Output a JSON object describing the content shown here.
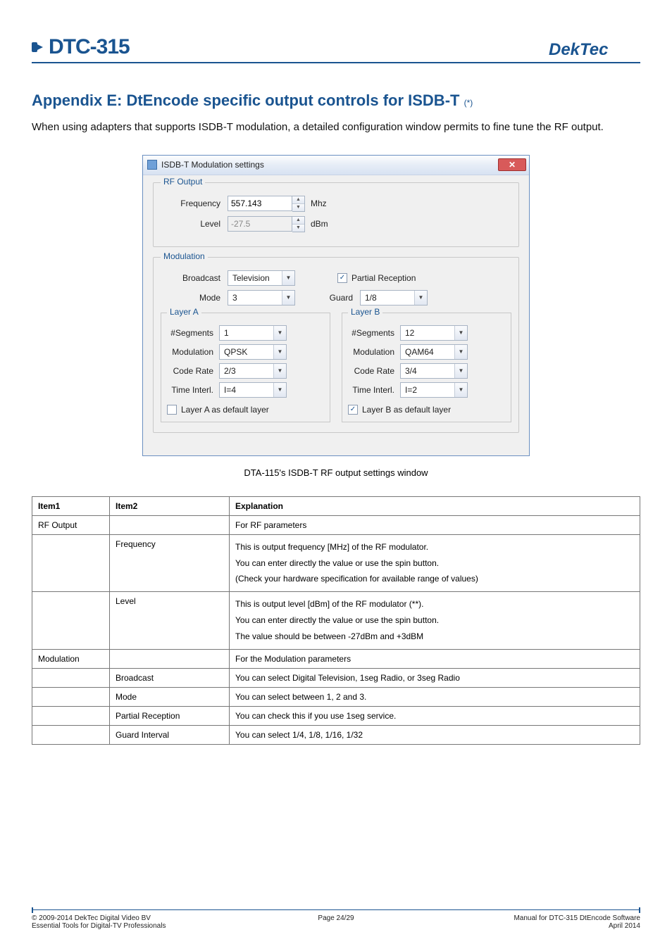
{
  "header": {
    "product": "DTC-315",
    "brand": "DekTec"
  },
  "heading": {
    "main": "Appendix E: DtEncode specific output controls for ISDB-T",
    "note": "(*)"
  },
  "intro": "When using adapters that supports ISDB-T modulation, a detailed configuration window permits to fine tune the RF output.",
  "dialog": {
    "title": "ISDB-T Modulation settings",
    "rf_output": {
      "legend": "RF Output",
      "frequency_label": "Frequency",
      "frequency_value": "557.143",
      "frequency_unit": "Mhz",
      "level_label": "Level",
      "level_value": "-27.5",
      "level_unit": "dBm"
    },
    "modulation": {
      "legend": "Modulation",
      "broadcast_label": "Broadcast",
      "broadcast_value": "Television",
      "partial_reception_label": "Partial Reception",
      "partial_reception_checked": true,
      "mode_label": "Mode",
      "mode_value": "3",
      "guard_label": "Guard",
      "guard_value": "1/8",
      "layerA": {
        "legend": "Layer A",
        "segments_label": "#Segments",
        "segments": "1",
        "modulation_label": "Modulation",
        "modulation": "QPSK",
        "coderate_label": "Code Rate",
        "coderate": "2/3",
        "timeinterl_label": "Time Interl.",
        "timeinterl": "I=4",
        "default_label": "Layer A as default layer",
        "default_checked": false
      },
      "layerB": {
        "legend": "Layer B",
        "segments_label": "#Segments",
        "segments": "12",
        "modulation_label": "Modulation",
        "modulation": "QAM64",
        "coderate_label": "Code Rate",
        "coderate": "3/4",
        "timeinterl_label": "Time Interl.",
        "timeinterl": "I=2",
        "default_label": "Layer B as default layer",
        "default_checked": true
      }
    }
  },
  "caption": "DTA-115's ISDB-T RF output settings window",
  "table": {
    "headers": {
      "c1": "Item1",
      "c2": "Item2",
      "c3": "Explanation"
    },
    "rows": [
      {
        "c1": "RF Output",
        "c2": "",
        "c3": "For RF parameters"
      },
      {
        "c1": "",
        "c2": "Frequency",
        "c3": "This is output frequency [MHz] of the RF modulator.\nYou can enter directly the value or use the spin button.\n(Check your hardware specification for available range of values)"
      },
      {
        "c1": "",
        "c2": "Level",
        "c3": "This is output level [dBm] of the RF modulator (**).\nYou can enter directly the value or use the spin button.\nThe value should be between -27dBm and +3dBM"
      },
      {
        "c1": "Modulation",
        "c2": "",
        "c3": "For the Modulation parameters"
      },
      {
        "c1": "",
        "c2": "Broadcast",
        "c3": "You can select Digital Television, 1seg Radio, or 3seg Radio"
      },
      {
        "c1": "",
        "c2": "Mode",
        "c3": "You can select between 1, 2 and 3."
      },
      {
        "c1": "",
        "c2": "Partial Reception",
        "c3": "You can check this if you use 1seg service."
      },
      {
        "c1": "",
        "c2": "Guard Interval",
        "c3": "You can select  1/4, 1/8, 1/16, 1/32"
      }
    ]
  },
  "footer": {
    "left1": "© 2009-2014 DekTec Digital Video BV",
    "left2": "Essential Tools for Digital-TV Professionals",
    "center": "Page 24/29",
    "right1": "Manual for DTC-315 DtEncode Software",
    "right2": "April 2014"
  }
}
